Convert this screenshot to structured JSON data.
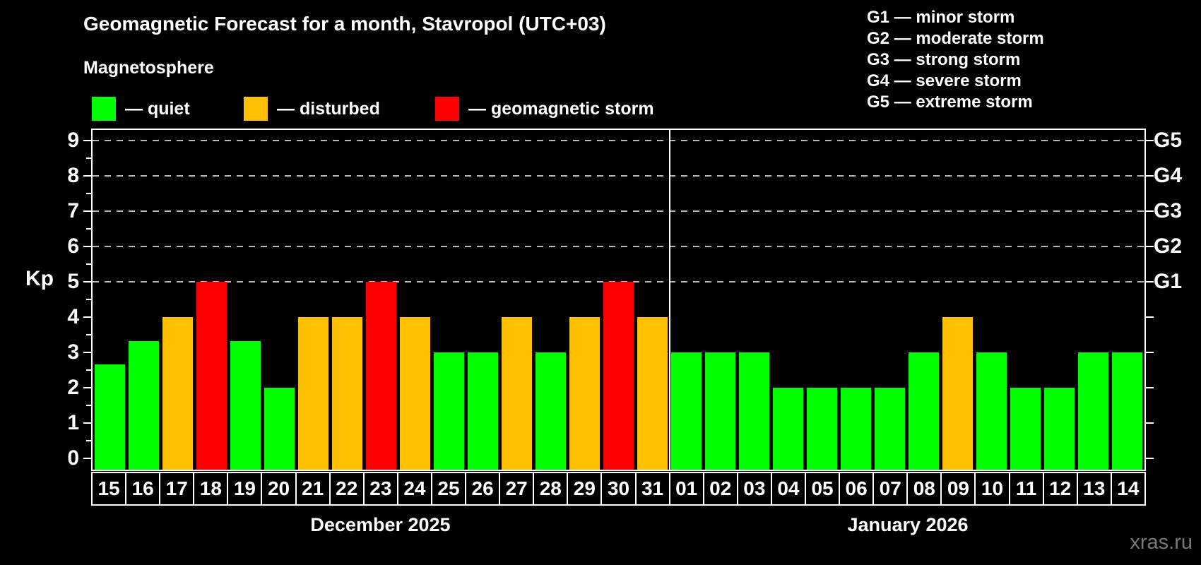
{
  "header": {
    "title": "Geomagnetic Forecast for a month, Stavropol (UTC+03)",
    "subtitle": "Magnetosphere"
  },
  "legend": {
    "items": [
      {
        "key": "quiet",
        "label": "— quiet",
        "color": "#00ff00"
      },
      {
        "key": "disturbed",
        "label": "— disturbed",
        "color": "#ffc000"
      },
      {
        "key": "storm",
        "label": "— geomagnetic storm",
        "color": "#ff0000"
      }
    ]
  },
  "g_legend": {
    "lines": [
      "G1 — minor storm",
      "G2 — moderate storm",
      "G3 — strong storm",
      "G4 — severe storm",
      "G5 — extreme storm"
    ]
  },
  "axes": {
    "y_label": "Kp",
    "y_ticks": [
      0,
      1,
      2,
      3,
      4,
      5,
      6,
      7,
      8,
      9
    ],
    "right_labels": [
      {
        "text": "G1",
        "kp": 5
      },
      {
        "text": "G2",
        "kp": 6
      },
      {
        "text": "G3",
        "kp": 7
      },
      {
        "text": "G4",
        "kp": 8
      },
      {
        "text": "G5",
        "kp": 9
      }
    ]
  },
  "watermark": "xras.ru",
  "chart_data": {
    "type": "bar",
    "title": "Geomagnetic Forecast for a month, Stavropol (UTC+03)",
    "xlabel": "",
    "ylabel": "Kp",
    "ylim": [
      0,
      9
    ],
    "grid": "dashed horizontal at Kp 5-9",
    "gridlines_kp": [
      5,
      6,
      7,
      8,
      9
    ],
    "legend_position": "top-left",
    "months": [
      {
        "label": "December 2025",
        "days": 17
      },
      {
        "label": "January 2026",
        "days": 14
      }
    ],
    "categories": [
      "15",
      "16",
      "17",
      "18",
      "19",
      "20",
      "21",
      "22",
      "23",
      "24",
      "25",
      "26",
      "27",
      "28",
      "29",
      "30",
      "31",
      "01",
      "02",
      "03",
      "04",
      "05",
      "06",
      "07",
      "08",
      "09",
      "10",
      "11",
      "12",
      "13",
      "14"
    ],
    "values": [
      2.67,
      3.33,
      4,
      5,
      3.33,
      2,
      4,
      4,
      5,
      4,
      3,
      3,
      4,
      3,
      4,
      5,
      4,
      3,
      3,
      3,
      2,
      2,
      2,
      2,
      3,
      4,
      3,
      2,
      2,
      3,
      3
    ],
    "levels": [
      "quiet",
      "quiet",
      "disturbed",
      "storm",
      "quiet",
      "quiet",
      "disturbed",
      "disturbed",
      "storm",
      "disturbed",
      "quiet",
      "quiet",
      "disturbed",
      "quiet",
      "disturbed",
      "storm",
      "disturbed",
      "quiet",
      "quiet",
      "quiet",
      "quiet",
      "quiet",
      "quiet",
      "quiet",
      "quiet",
      "disturbed",
      "quiet",
      "quiet",
      "quiet",
      "quiet",
      "quiet"
    ],
    "colors": {
      "quiet": "#00ff00",
      "disturbed": "#ffc000",
      "storm": "#ff0000"
    }
  }
}
